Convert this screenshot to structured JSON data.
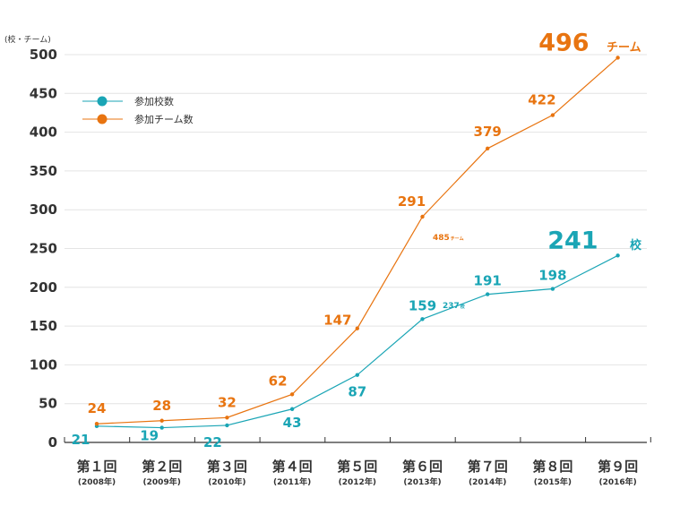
{
  "chart_data": {
    "type": "line",
    "y_unit": "(校・チーム)",
    "ylim": [
      0,
      500
    ],
    "yticks": [
      "0",
      "50",
      "100",
      "150",
      "200",
      "250",
      "300",
      "350",
      "400",
      "450",
      "500"
    ],
    "grid": true,
    "legend_position": "top-left",
    "categories": [
      {
        "label": "第１回",
        "year": "(2008年)"
      },
      {
        "label": "第２回",
        "year": "(2009年)"
      },
      {
        "label": "第３回",
        "year": "(2010年)"
      },
      {
        "label": "第４回",
        "year": "(2011年)"
      },
      {
        "label": "第５回",
        "year": "(2012年)"
      },
      {
        "label": "第６回",
        "year": "(2013年)"
      },
      {
        "label": "第７回",
        "year": "(2014年)"
      },
      {
        "label": "第８回",
        "year": "(2015年)"
      },
      {
        "label": "第９回",
        "year": "(2016年)"
      }
    ],
    "series": [
      {
        "name": "参加校数",
        "color": "#1aa5b5",
        "values": [
          21,
          19,
          22,
          43,
          87,
          159,
          191,
          198,
          241
        ],
        "labels": [
          "21",
          "19",
          "22",
          "43",
          "87",
          "159",
          "191",
          "198",
          "241"
        ]
      },
      {
        "name": "参加チーム数",
        "color": "#e87410",
        "values": [
          24,
          28,
          32,
          62,
          147,
          291,
          379,
          422,
          496
        ],
        "labels": [
          "24",
          "28",
          "32",
          "62",
          "147",
          "291",
          "379",
          "422",
          "496"
        ]
      }
    ],
    "annotations": {
      "team_final_unit": "チーム",
      "school_final_unit": "校",
      "small_team_value": "485",
      "small_team_unit": "チーム",
      "small_school_value": "237",
      "small_school_unit": "校"
    }
  }
}
